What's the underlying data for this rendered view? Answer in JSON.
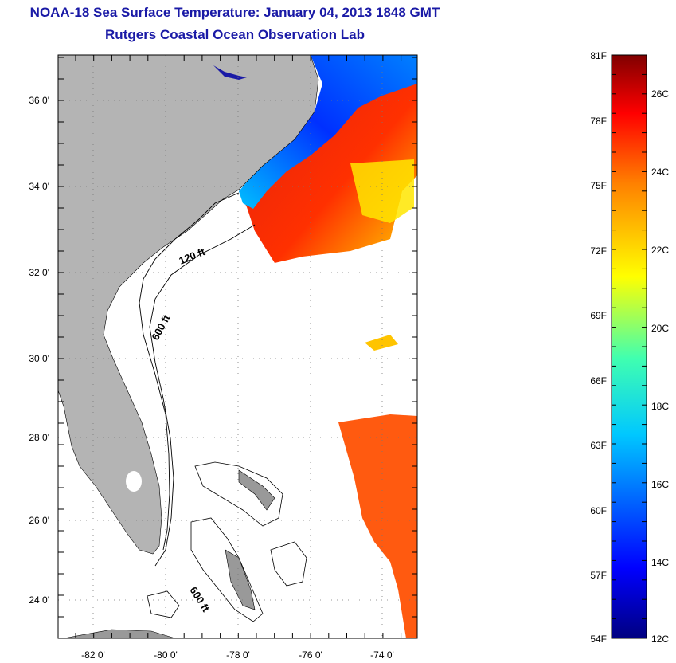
{
  "header": {
    "title": "NOAA-18 Sea Surface Temperature:  January 04, 2013 1848 GMT",
    "subtitle": "Rutgers Coastal Ocean Observation Lab"
  },
  "map": {
    "lat_labels": [
      "36 0'",
      "34 0'",
      "32 0'",
      "30 0'",
      "28 0'",
      "26 0'",
      "24 0'"
    ],
    "lon_labels": [
      "-82 0'",
      "-80 0'",
      "-78 0'",
      "-76 0'",
      "-74 0'"
    ],
    "contour_labels": [
      "120 ft",
      "600 ft",
      "600 ft"
    ],
    "colors": {
      "land": "#b4b4b4",
      "water": "#ffffff",
      "contour": "#000000",
      "grid": "#888888"
    }
  },
  "colorbar": {
    "f_labels": [
      "81F",
      "78F",
      "75F",
      "72F",
      "69F",
      "66F",
      "63F",
      "60F",
      "57F",
      "54F"
    ],
    "c_labels": [
      "26C",
      "24C",
      "22C",
      "20C",
      "18C",
      "16C",
      "14C",
      "12C"
    ]
  }
}
